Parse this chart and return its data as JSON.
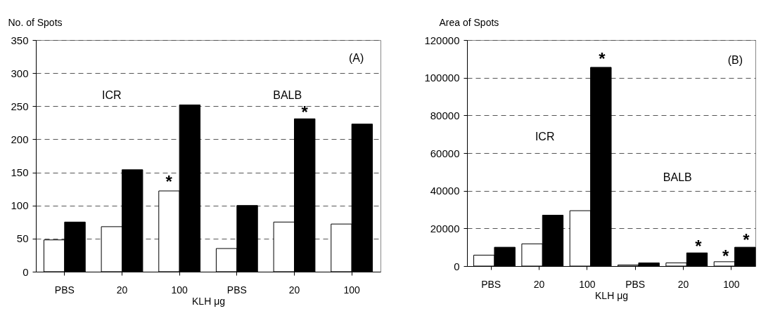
{
  "chart_data": [
    {
      "type": "bar",
      "ylabel": "No. of Spots",
      "xlabel": "KLH μg",
      "categories": [
        "PBS",
        "20",
        "100",
        "PBS",
        "20",
        "100"
      ],
      "series": [
        {
          "color": "#ffffff",
          "values": [
            48,
            68,
            122,
            35,
            75,
            72
          ]
        },
        {
          "color": "#000000",
          "values": [
            75,
            154,
            252,
            100,
            231,
            223
          ]
        }
      ],
      "ylim": [
        0,
        350
      ],
      "yticks": [
        0,
        50,
        100,
        150,
        200,
        250,
        300,
        350
      ],
      "grid": "y",
      "annotations": [
        "(A)",
        "ICR",
        "BALB",
        "*",
        "*"
      ]
    },
    {
      "type": "bar",
      "ylabel": "Area of Spots",
      "xlabel": "KLH μg",
      "categories": [
        "PBS",
        "20",
        "100",
        "PBS",
        "20",
        "100"
      ],
      "series": [
        {
          "color": "#ffffff",
          "values": [
            5800,
            11800,
            29400,
            600,
            1700,
            2300
          ]
        },
        {
          "color": "#000000",
          "values": [
            10000,
            27000,
            105500,
            1700,
            7000,
            10000
          ]
        }
      ],
      "ylim": [
        0,
        120000
      ],
      "yticks": [
        0,
        20000,
        40000,
        60000,
        80000,
        100000,
        120000
      ],
      "grid": "y",
      "annotations": [
        "(B)",
        "ICR",
        "BALB",
        "*",
        "*",
        "*",
        "*"
      ]
    }
  ]
}
